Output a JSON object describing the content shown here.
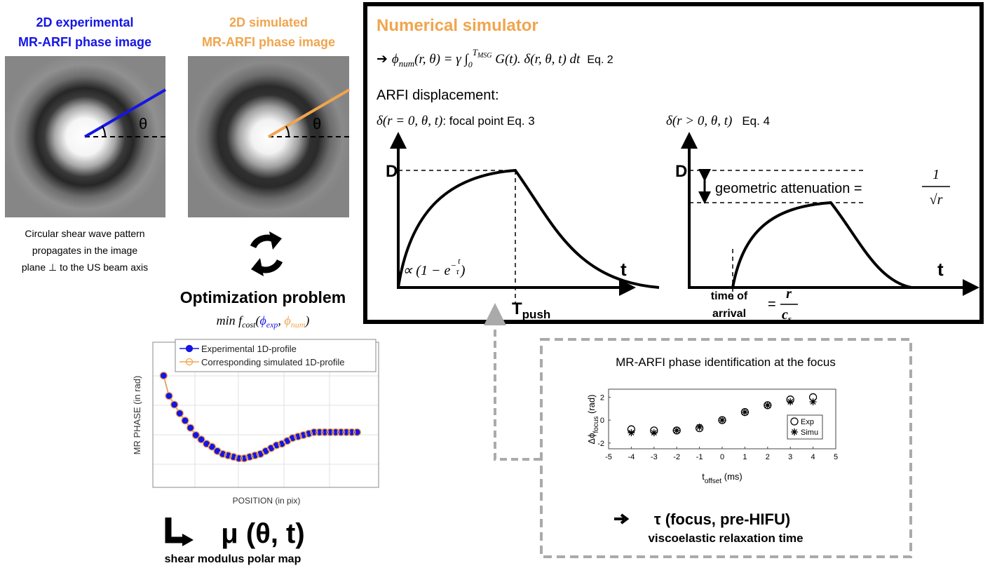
{
  "left": {
    "exp_title": [
      "2D experimental",
      "MR-ARFI phase image"
    ],
    "sim_title": [
      "2D simulated",
      "MR-ARFI phase image"
    ],
    "theta": "θ",
    "caption": [
      "Circular shear wave pattern",
      "propagates in the image",
      "plane ⊥ to the US beam axis"
    ],
    "optimization": "Optimization problem",
    "cost": {
      "min": "min f",
      "sub": "cost",
      "open": "(",
      "exp": "ϕ",
      "exp_sub": "exp",
      "comma": ", ",
      "num": "ϕ",
      "num_sub": "num",
      "close": ")"
    }
  },
  "profile_chart": {
    "type": "line",
    "xlabel": "POSITION (in pix)",
    "ylabel": "MR PHASE (in rad)",
    "x": [
      1,
      2,
      3,
      4,
      5,
      6,
      7,
      8,
      9,
      10,
      11,
      12,
      13,
      14,
      15,
      16,
      17,
      18,
      19,
      20,
      21,
      22,
      23,
      24,
      25,
      26,
      27,
      28,
      29,
      30,
      31,
      32,
      33,
      34,
      35,
      36,
      37
    ],
    "xlim": [
      -1,
      41
    ],
    "ylim": [
      0,
      1
    ],
    "grid": true,
    "series": [
      {
        "name": "Experimental 1D-profile",
        "color": "#1515e6",
        "marker": "filled-circle",
        "values": [
          0.77,
          0.63,
          0.57,
          0.51,
          0.46,
          0.41,
          0.36,
          0.33,
          0.3,
          0.28,
          0.25,
          0.23,
          0.22,
          0.21,
          0.2,
          0.2,
          0.21,
          0.22,
          0.23,
          0.25,
          0.27,
          0.29,
          0.3,
          0.32,
          0.34,
          0.35,
          0.36,
          0.37,
          0.38,
          0.38,
          0.38,
          0.38,
          0.38,
          0.38,
          0.38,
          0.38,
          0.38
        ]
      },
      {
        "name": "Corresponding simulated 1D-profile",
        "color": "#f0a54e",
        "marker": "open-circle",
        "values": [
          0.77,
          0.63,
          0.57,
          0.51,
          0.46,
          0.41,
          0.36,
          0.33,
          0.3,
          0.28,
          0.25,
          0.23,
          0.22,
          0.21,
          0.2,
          0.2,
          0.21,
          0.22,
          0.23,
          0.25,
          0.27,
          0.29,
          0.3,
          0.32,
          0.34,
          0.35,
          0.36,
          0.37,
          0.38,
          0.38,
          0.38,
          0.38,
          0.38,
          0.38,
          0.38,
          0.38,
          0.38
        ]
      }
    ]
  },
  "shear": {
    "mu": "μ (θ, t)",
    "caption": "shear modulus polar map"
  },
  "simulator": {
    "title": "Numerical simulator",
    "eq2": {
      "arrow": "➔",
      "phi": "ϕ",
      "phi_sub": "num",
      "mid": "(r, θ) = γ ∫",
      "low": "0",
      "up": "T",
      "up_sub": "MSG",
      "rest": " G(t). δ(r, θ, t) dt",
      "label": "Eq. 2"
    },
    "displacement": "ARFI displacement:",
    "eq3": {
      "delta": "δ(r = 0, θ, t)",
      "label": ": focal point   Eq. 3"
    },
    "eq4": {
      "delta": "δ(r > 0, θ, t)",
      "label": "Eq. 4"
    },
    "D": "D",
    "t": "t",
    "growth": {
      "base": "∝ (1 − e",
      "sign": "−",
      "num": "t",
      "den": "τ",
      "close": ")"
    },
    "tpush": {
      "T": "T",
      "sub": "push"
    },
    "attenuation": {
      "text": "geometric attenuation = ",
      "num": "1",
      "den": "√r"
    },
    "arrival": {
      "text": [
        "time of",
        "arrival"
      ],
      "eq": "=",
      "num": "r",
      "den": "c",
      "den_sub": "s"
    }
  },
  "identification": {
    "title": "MR-ARFI phase identification at the focus",
    "chart": {
      "type": "scatter",
      "xlabel": {
        "t": "t",
        "sub": "offset",
        "unit": " (ms)"
      },
      "ylabel": {
        "d": "Δϕ",
        "sub": "focus",
        "unit": " (rad)"
      },
      "x": [
        -4,
        -3,
        -2,
        -1,
        0,
        1,
        2,
        3,
        4
      ],
      "xlim": [
        -5,
        5
      ],
      "xticks": [
        -5,
        -4,
        -3,
        -2,
        -1,
        0,
        1,
        2,
        3,
        4,
        5
      ],
      "ylim": [
        -2.5,
        2.7
      ],
      "yticks": [
        -2,
        0,
        2
      ],
      "series": [
        {
          "name": "Exp",
          "color": "#000000",
          "marker": "circle",
          "values": [
            -0.8,
            -0.9,
            -0.9,
            -0.7,
            0,
            0.7,
            1.3,
            1.8,
            2.0
          ]
        },
        {
          "name": "Simu",
          "color": "#000000",
          "marker": "asterisk",
          "values": [
            -1.1,
            -1.1,
            -0.9,
            -0.6,
            0,
            0.7,
            1.3,
            1.6,
            1.6
          ]
        }
      ]
    },
    "tau": "τ (focus, pre-HIFU)",
    "tau_caption": "viscoelastic relaxation time"
  }
}
